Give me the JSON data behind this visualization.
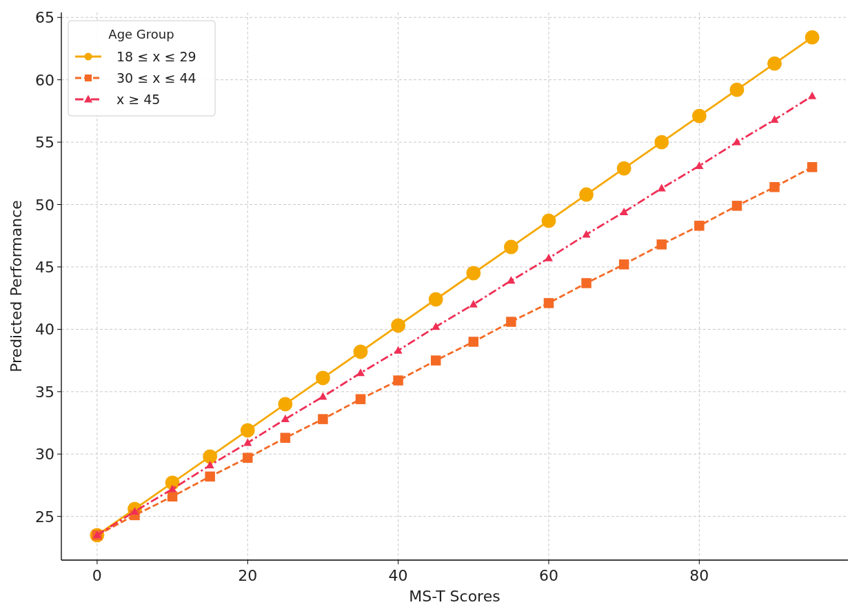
{
  "chart_data": {
    "type": "line",
    "xlabel": "MS-T Scores",
    "ylabel": "Predicted Performance",
    "legend_title": "Age Group",
    "legend": "top left",
    "grid": true,
    "x": [
      0,
      5,
      10,
      15,
      20,
      25,
      30,
      35,
      40,
      45,
      50,
      55,
      60,
      65,
      70,
      75,
      80,
      85,
      90,
      95
    ],
    "xlim": [
      -4.75,
      99.75
    ],
    "xticks": [
      0,
      20,
      40,
      60,
      80
    ],
    "ylim": [
      21.5,
      65.4
    ],
    "yticks": [
      25,
      30,
      35,
      40,
      45,
      50,
      55,
      60,
      65
    ],
    "series": [
      {
        "name": "18 ≤ x ≤ 29",
        "color": "#f5a800",
        "marker": "circle",
        "line_style": "solid",
        "values": [
          23.5,
          25.6,
          27.7,
          29.8,
          31.9,
          34.0,
          36.1,
          38.2,
          40.3,
          42.4,
          44.5,
          46.6,
          48.7,
          50.8,
          52.9,
          55.0,
          57.1,
          59.2,
          61.3,
          63.4
        ]
      },
      {
        "name": "30 ≤ x ≤ 44",
        "color": "#f46a25",
        "marker": "square",
        "line_style": "dashed",
        "values": [
          23.5,
          25.1,
          26.6,
          28.2,
          29.7,
          31.3,
          32.8,
          34.4,
          35.9,
          37.5,
          39.0,
          40.6,
          42.1,
          43.7,
          45.2,
          46.8,
          48.3,
          49.9,
          51.4,
          53.0
        ]
      },
      {
        "name": "x ≥ 45",
        "color": "#ef2f55",
        "marker": "triangle",
        "line_style": "dashdot",
        "values": [
          23.5,
          25.4,
          27.2,
          29.1,
          30.9,
          32.8,
          34.6,
          36.5,
          38.3,
          40.2,
          42.0,
          43.9,
          45.7,
          47.6,
          49.4,
          51.3,
          53.1,
          55.0,
          56.8,
          58.7
        ]
      }
    ]
  }
}
